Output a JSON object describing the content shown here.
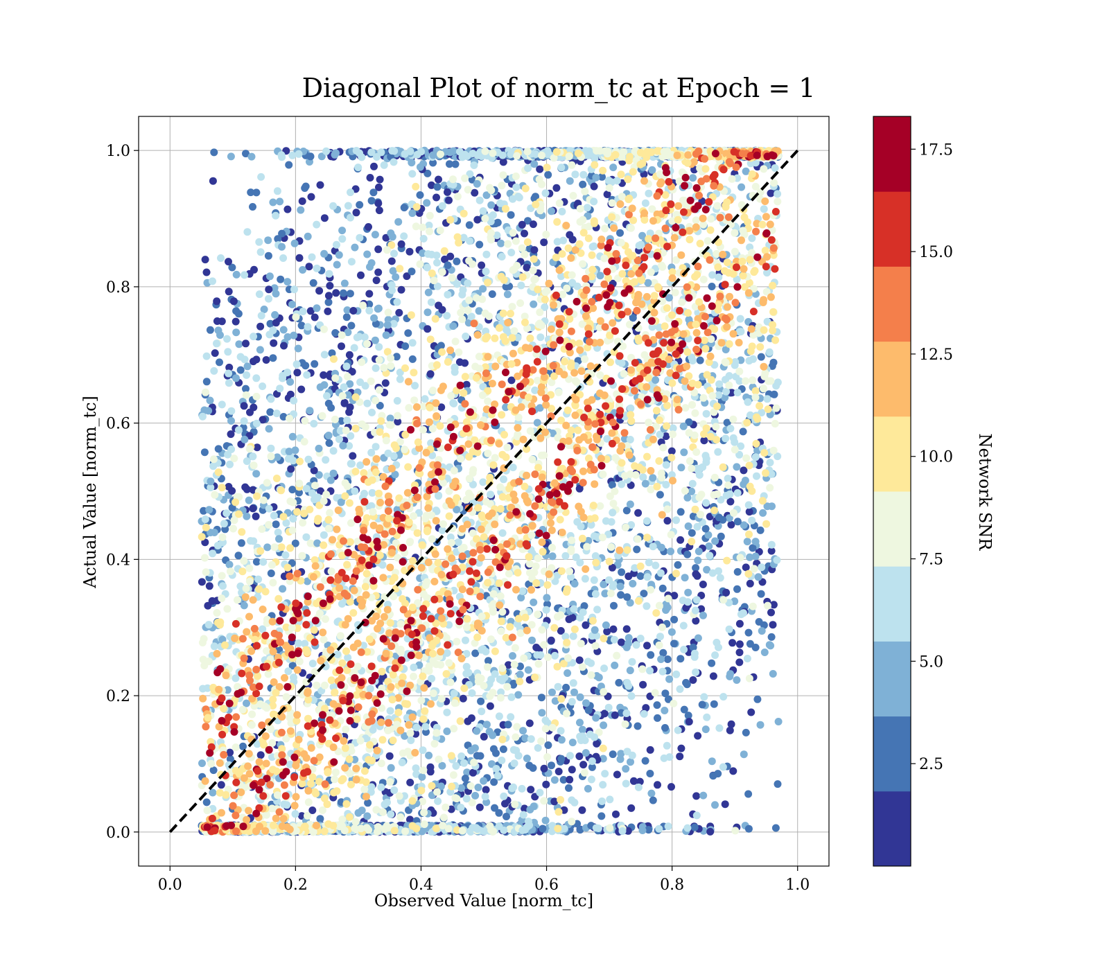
{
  "chart_data": {
    "type": "scatter",
    "title": "Diagonal Plot of norm_tc at Epoch = 1",
    "xlabel": "Observed Value [norm_tc]",
    "ylabel": "Actual Value [norm_tc]",
    "xlim": [
      -0.05,
      1.05
    ],
    "ylim": [
      -0.05,
      1.05
    ],
    "xticks": [
      "0.0",
      "0.2",
      "0.4",
      "0.6",
      "0.8",
      "1.0"
    ],
    "yticks": [
      "0.0",
      "0.2",
      "0.4",
      "0.6",
      "0.8",
      "1.0"
    ],
    "grid": true,
    "reference_line": {
      "style": "dashed",
      "color": "#000000",
      "x": [
        0,
        1
      ],
      "y": [
        0,
        1
      ]
    },
    "colorbar": {
      "label": "Network SNR",
      "range": [
        0,
        18.3
      ],
      "ticks": [
        "2.5",
        "5.0",
        "7.5",
        "10.0",
        "12.5",
        "15.0",
        "17.5"
      ],
      "bin_colors": [
        "#313695",
        "#4575b4",
        "#7fb1d6",
        "#bde2ee",
        "#eef7e0",
        "#fee99a",
        "#fdbb6c",
        "#f47f4b",
        "#d73027",
        "#a50026"
      ]
    },
    "series": [
      {
        "summary": "Dense scatter of samples colored by Network SNR; high-SNR (orange/red) points form a tight band along y = x, with width around ±0.1 near the ends and ±0.1 in the middle; mid-SNR (yellow/light) points widen the band; low-SNR (blue) points fill the upper-left and lower-right regions.",
        "bands": [
          {
            "snr_range": [
              13,
              18.3
            ],
            "y_minus_x_offsets": [
              -0.1,
              0.1
            ],
            "spread": 0.035,
            "color_hint": "red"
          },
          {
            "snr_range": [
              10,
              13
            ],
            "y_minus_x_offsets": [
              -0.1,
              0.1
            ],
            "spread": 0.07,
            "color_hint": "orange"
          },
          {
            "snr_range": [
              7.5,
              10
            ],
            "y_minus_x_offsets": [
              -0.15,
              0.15
            ],
            "spread": 0.18,
            "color_hint": "yellow"
          },
          {
            "snr_range": [
              5,
              7.5
            ],
            "y_minus_x_offsets": [
              -0.3,
              0.3
            ],
            "spread": 0.25,
            "color_hint": "light-blue"
          },
          {
            "snr_range": [
              0,
              5
            ],
            "y_minus_x_offsets": [
              -0.45,
              0.45
            ],
            "spread": 0.22,
            "color_hint": "blue"
          }
        ]
      }
    ]
  }
}
